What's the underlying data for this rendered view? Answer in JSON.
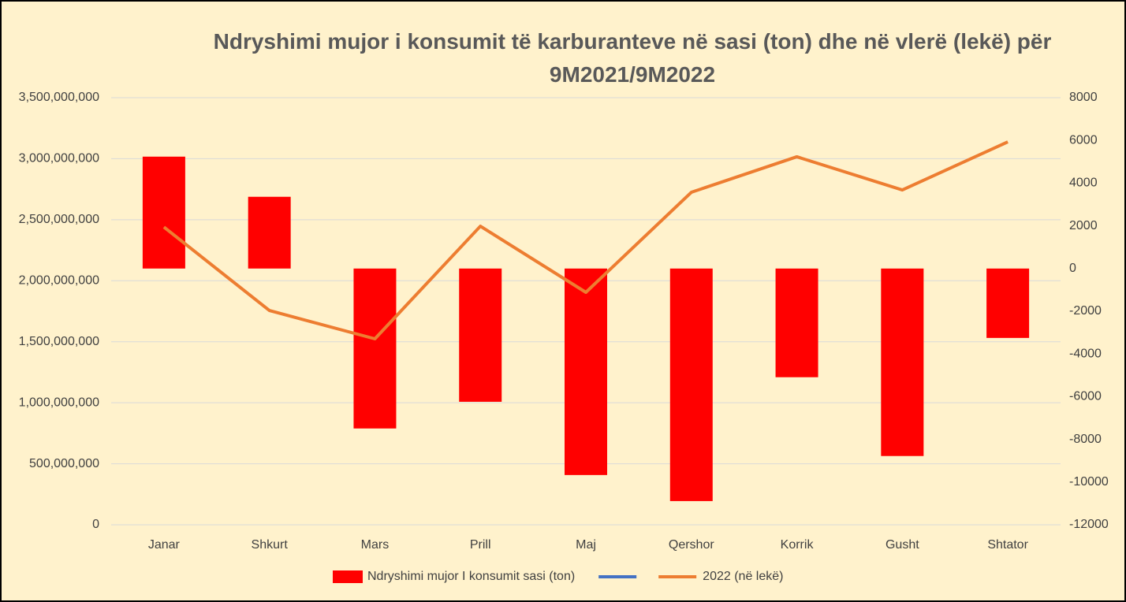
{
  "chart_data": {
    "type": "bar-line",
    "title": "Ndryshimi mujor i konsumit të karburanteve në sasi (ton) dhe në vlerë (lekë) për 9M2021/9M2022",
    "categories": [
      "Janar",
      "Shkurt",
      "Mars",
      "Prill",
      "Maj",
      "Qershor",
      "Korrik",
      "Gusht",
      "Shtator"
    ],
    "series": [
      {
        "name": "Ndryshimi mujor I konsumit sasi (ton)",
        "type": "bar",
        "axis": "y2",
        "color": "#ff0000",
        "values": [
          5240,
          3360,
          -7490,
          -6240,
          -9670,
          -10890,
          -5090,
          -8780,
          -3250
        ]
      },
      {
        "type": "line",
        "color": "#4472c4",
        "values": [
          null,
          null,
          null,
          null,
          null,
          null,
          null,
          null,
          null
        ]
      },
      {
        "name": "2022 (në lekë)",
        "type": "line",
        "color": "#ed7d31",
        "values": [
          2440000000,
          1756000000,
          1524000000,
          2447000000,
          1905000000,
          2725000000,
          3016000000,
          2744000000,
          3138000000
        ]
      }
    ],
    "ylim": [
      0,
      3500000000
    ],
    "yticks": [
      {
        "value": 0,
        "label": "0"
      },
      {
        "value": 500000000,
        "label": "500,000,000"
      },
      {
        "value": 1000000000,
        "label": "1,000,000,000"
      },
      {
        "value": 1500000000,
        "label": "1,500,000,000"
      },
      {
        "value": 2000000000,
        "label": "2,000,000,000"
      },
      {
        "value": 2500000000,
        "label": "2,500,000,000"
      },
      {
        "value": 3000000000,
        "label": "3,000,000,000"
      },
      {
        "value": 3500000000,
        "label": "3,500,000,000"
      }
    ],
    "y2lim": [
      -12000,
      8000
    ],
    "y2ticks": [
      -12000,
      -10000,
      -8000,
      -6000,
      -4000,
      -2000,
      0,
      2000,
      4000,
      6000,
      8000
    ],
    "grid": true,
    "legend": "bottom"
  }
}
